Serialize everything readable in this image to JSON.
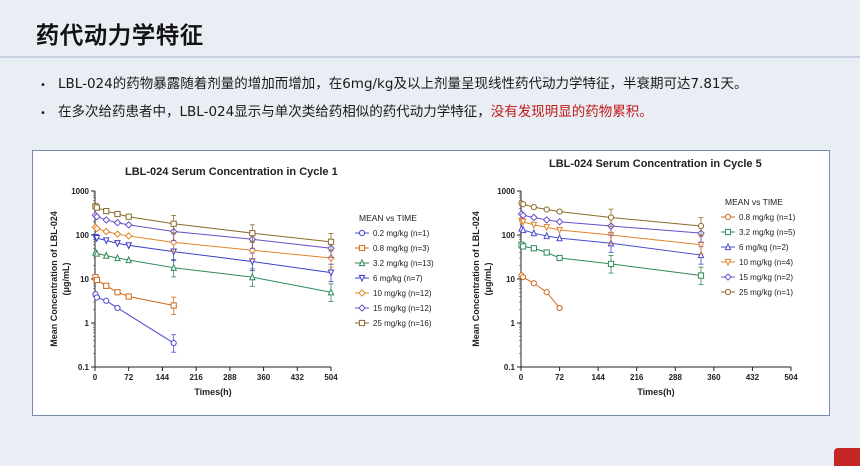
{
  "slide": {
    "title": "药代动力学特征",
    "bullets": [
      {
        "text": "LBL-024的药物暴露随着剂量的增加而增加，在6mg/kg及以上剂量呈现线性药代动力学特征，半衰期可达7.81天。",
        "highlight": ""
      },
      {
        "text": "在多次给药患者中，LBL-024显示与单次类给药相似的药代动力学特征，",
        "highlight": "没有发现明显的药物累积。"
      }
    ]
  },
  "chart_data": [
    {
      "type": "line",
      "title": "LBL-024 Serum Concentration in Cycle 1",
      "xlabel": "Times(h)",
      "ylabel": "Mean Concentration of LBL-024 (μg/mL)",
      "yscale": "log",
      "ylim": [
        0.1,
        1000
      ],
      "xlim": [
        0,
        504
      ],
      "xticks": [
        0,
        72,
        144,
        216,
        288,
        360,
        432,
        504
      ],
      "yticks": [
        "0.1",
        "1",
        "10",
        "100",
        "1000"
      ],
      "legend_title": "MEAN vs TIME",
      "legend_position": "right",
      "series": [
        {
          "name": "0.2 mg/kg (n=1)",
          "color": "#4a4acf",
          "marker": "circle",
          "points": [
            [
              1,
              4.5
            ],
            [
              4,
              3.8
            ],
            [
              24,
              3.2
            ],
            [
              48,
              2.2
            ],
            [
              168,
              0.35
            ]
          ]
        },
        {
          "name": "0.8 mg/kg (n=3)",
          "color": "#d2691e",
          "marker": "square",
          "points": [
            [
              1,
              11
            ],
            [
              4,
              9.5
            ],
            [
              24,
              7
            ],
            [
              48,
              5
            ],
            [
              72,
              4
            ],
            [
              168,
              2.5
            ]
          ]
        },
        {
          "name": "3.2 mg/kg (n=13)",
          "color": "#2e8b57",
          "marker": "triangle-up",
          "points": [
            [
              1,
              40
            ],
            [
              4,
              38
            ],
            [
              24,
              34
            ],
            [
              48,
              30
            ],
            [
              72,
              27
            ],
            [
              168,
              18
            ],
            [
              336,
              11
            ],
            [
              504,
              5
            ]
          ]
        },
        {
          "name": "6 mg/kg (n=7)",
          "color": "#3d3dc8",
          "marker": "triangle-down",
          "points": [
            [
              1,
              90
            ],
            [
              4,
              85
            ],
            [
              24,
              75
            ],
            [
              48,
              65
            ],
            [
              72,
              58
            ],
            [
              168,
              42
            ],
            [
              336,
              25
            ],
            [
              504,
              14
            ]
          ]
        },
        {
          "name": "10 mg/kg (n=12)",
          "color": "#e0842a",
          "marker": "diamond",
          "points": [
            [
              1,
              150
            ],
            [
              4,
              140
            ],
            [
              24,
              120
            ],
            [
              48,
              105
            ],
            [
              72,
              95
            ],
            [
              168,
              68
            ],
            [
              336,
              45
            ],
            [
              504,
              30
            ]
          ]
        },
        {
          "name": "15 mg/kg (n=12)",
          "color": "#6a4ec8",
          "marker": "diamond",
          "points": [
            [
              1,
              280
            ],
            [
              4,
              260
            ],
            [
              24,
              220
            ],
            [
              48,
              190
            ],
            [
              72,
              170
            ],
            [
              168,
              120
            ],
            [
              336,
              80
            ],
            [
              504,
              50
            ]
          ]
        },
        {
          "name": "25 mg/kg (n=16)",
          "color": "#8b6a2a",
          "marker": "square",
          "points": [
            [
              1,
              450
            ],
            [
              4,
              420
            ],
            [
              24,
              350
            ],
            [
              48,
              300
            ],
            [
              72,
              260
            ],
            [
              168,
              180
            ],
            [
              336,
              110
            ],
            [
              504,
              70
            ]
          ]
        }
      ]
    },
    {
      "type": "line",
      "title": "LBL-024 Serum Concentration in Cycle 5",
      "xlabel": "Times(h)",
      "ylabel": "Mean Concentration of LBL-024 (μg/mL)",
      "yscale": "log",
      "ylim": [
        0.1,
        1000
      ],
      "xlim": [
        0,
        504
      ],
      "xticks": [
        0,
        72,
        144,
        216,
        288,
        360,
        432,
        504
      ],
      "yticks": [
        "0.1",
        "1",
        "10",
        "100",
        "1000"
      ],
      "legend_title": "MEAN vs TIME",
      "legend_position": "right",
      "series": [
        {
          "name": "0.8 mg/kg (n=1)",
          "color": "#d2691e",
          "marker": "circle",
          "points": [
            [
              1,
              12
            ],
            [
              4,
              11
            ],
            [
              24,
              8
            ],
            [
              48,
              5
            ],
            [
              72,
              2.2
            ]
          ]
        },
        {
          "name": "3.2 mg/kg (n=5)",
          "color": "#2e8b57",
          "marker": "square",
          "points": [
            [
              1,
              60
            ],
            [
              4,
              55
            ],
            [
              24,
              50
            ],
            [
              48,
              40
            ],
            [
              72,
              30
            ],
            [
              168,
              22
            ],
            [
              336,
              12
            ]
          ]
        },
        {
          "name": "6 mg/kg (n=2)",
          "color": "#4a4acf",
          "marker": "triangle-up",
          "points": [
            [
              1,
              140
            ],
            [
              4,
              130
            ],
            [
              24,
              110
            ],
            [
              48,
              95
            ],
            [
              72,
              85
            ],
            [
              168,
              65
            ],
            [
              336,
              35
            ]
          ]
        },
        {
          "name": "10 mg/kg (n=4)",
          "color": "#e0842a",
          "marker": "triangle-down",
          "points": [
            [
              1,
              210
            ],
            [
              4,
              200
            ],
            [
              24,
              170
            ],
            [
              48,
              150
            ],
            [
              72,
              130
            ],
            [
              168,
              100
            ],
            [
              336,
              60
            ]
          ]
        },
        {
          "name": "15 mg/kg (n=2)",
          "color": "#6a4ec8",
          "marker": "diamond",
          "points": [
            [
              1,
              300
            ],
            [
              4,
              280
            ],
            [
              24,
              250
            ],
            [
              48,
              220
            ],
            [
              72,
              200
            ],
            [
              168,
              160
            ],
            [
              336,
              110
            ]
          ]
        },
        {
          "name": "25 mg/kg (n=1)",
          "color": "#8b6a2a",
          "marker": "circle",
          "points": [
            [
              1,
              520
            ],
            [
              4,
              500
            ],
            [
              24,
              430
            ],
            [
              48,
              380
            ],
            [
              72,
              340
            ],
            [
              168,
              250
            ],
            [
              336,
              160
            ]
          ]
        }
      ]
    }
  ]
}
